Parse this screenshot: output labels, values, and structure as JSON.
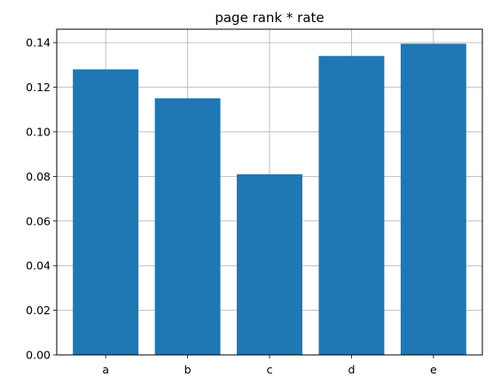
{
  "chart_data": {
    "type": "bar",
    "title": "page rank * rate",
    "xlabel": "",
    "ylabel": "",
    "categories": [
      "a",
      "b",
      "c",
      "d",
      "e"
    ],
    "values": [
      0.128,
      0.115,
      0.081,
      0.134,
      0.1395
    ],
    "ylim": [
      0,
      0.146
    ],
    "yticks": [
      0.0,
      0.02,
      0.04,
      0.06,
      0.08,
      0.1,
      0.12,
      0.14
    ],
    "ytick_labels": [
      "0.00",
      "0.02",
      "0.04",
      "0.06",
      "0.08",
      "0.10",
      "0.12",
      "0.14"
    ],
    "grid": true,
    "bar_color": "#1f77b4",
    "grid_color": "#b0b0b0"
  }
}
